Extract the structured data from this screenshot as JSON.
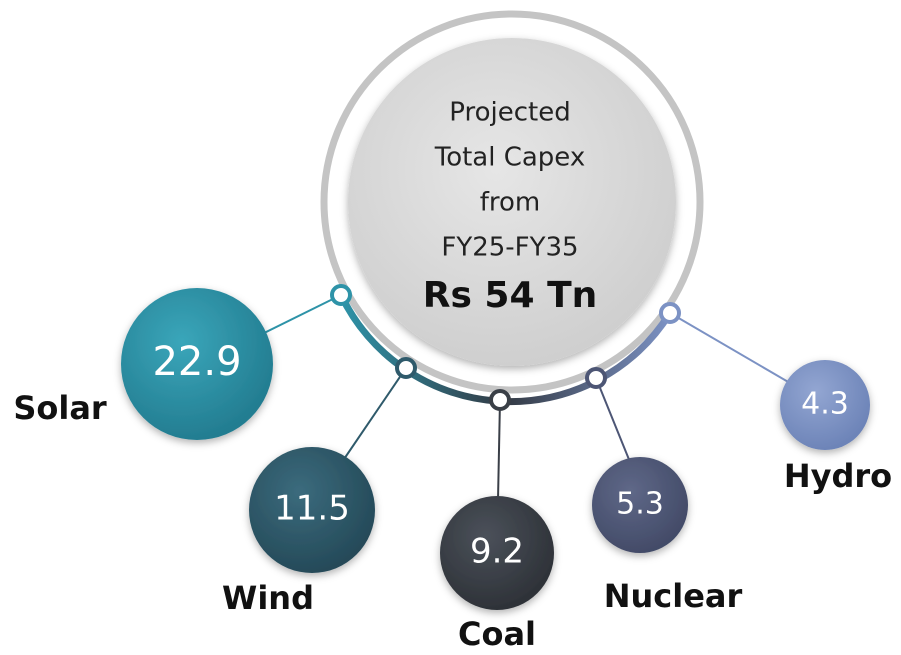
{
  "center": {
    "lines": [
      "Projected",
      "Total Capex",
      "from",
      "FY25-FY35"
    ],
    "value": "Rs 54 Tn"
  },
  "nodes": [
    {
      "label": "Solar",
      "value": "22.9"
    },
    {
      "label": "Wind",
      "value": "11.5"
    },
    {
      "label": "Coal",
      "value": "9.2"
    },
    {
      "label": "Nuclear",
      "value": "5.3"
    },
    {
      "label": "Hydro",
      "value": "4.3"
    }
  ]
}
